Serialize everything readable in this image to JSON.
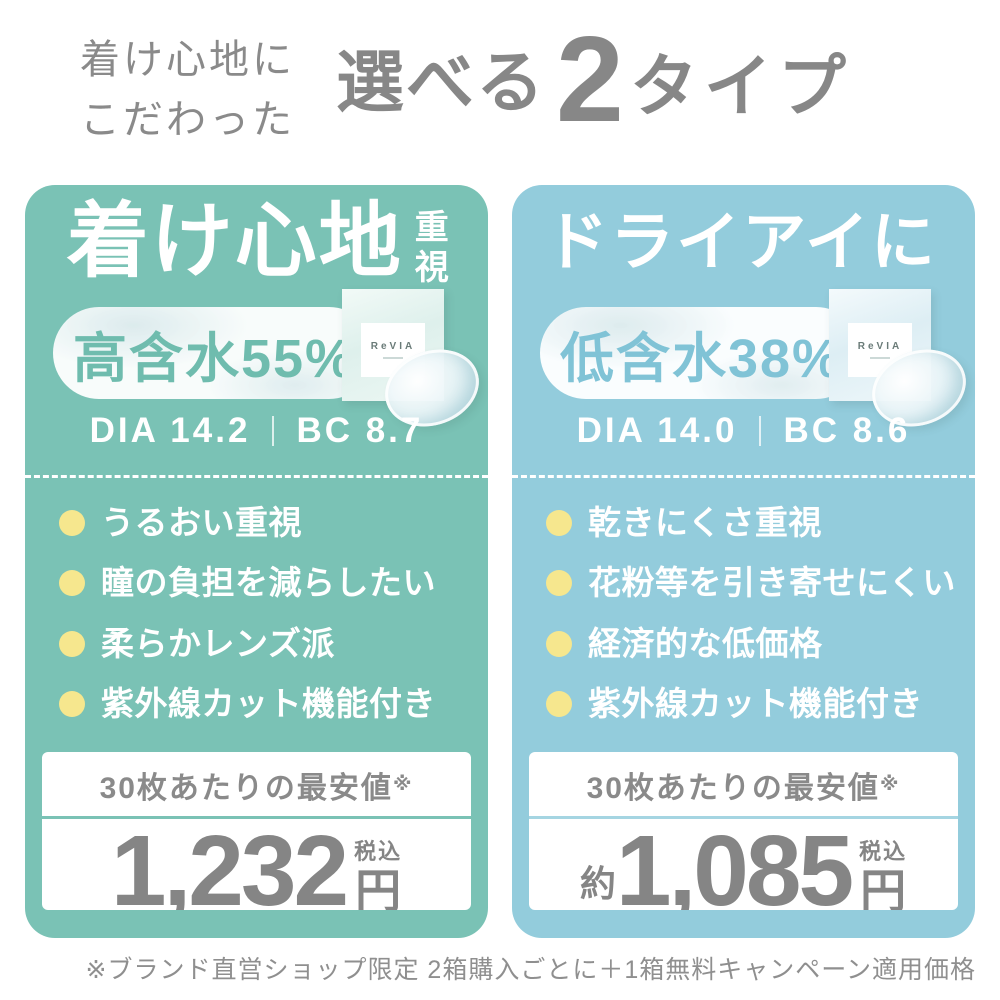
{
  "page": {
    "eyebrow_line1": "着け心地に",
    "eyebrow_line2": "こだわった",
    "title_pre": "選べる",
    "title_number": "2",
    "title_post": "タイプ",
    "footnote": "※ブランド直営ショップ限定 2箱購入ごとに＋1箱無料キャンペーン適用価格"
  },
  "colors": {
    "left_card_bg": "#7ac2b5",
    "right_card_bg": "#93ccdc",
    "bullet_dot_yellow": "#f6e78e",
    "heading_gray": "#8a8a8a",
    "price_gray": "#858585",
    "left_badge_text": "#6fbcae",
    "right_badge_text": "#80c3d6",
    "text_white": "#ffffff"
  },
  "cards": [
    {
      "title": "着け心地",
      "title_side": "重視",
      "badge": "高含水55%",
      "product_logo": "ReVIA",
      "spec_dia": "DIA 14.2",
      "spec_bc": "BC 8.7",
      "bullets": [
        "うるおい重視",
        "瞳の負担を減らしたい",
        "柔らかレンズ派",
        "紫外線カット機能付き"
      ],
      "price_label": "30枚あたりの最安値",
      "price_note": "※",
      "price_prefix": "",
      "price_amount": "1,232",
      "price_tax": "税込",
      "price_unit": "円"
    },
    {
      "title": "ドライアイに",
      "title_side": "",
      "badge": "低含水38%",
      "product_logo": "ReVIA",
      "spec_dia": "DIA 14.0",
      "spec_bc": "BC 8.6",
      "bullets": [
        "乾きにくさ重視",
        "花粉等を引き寄せにくい",
        "経済的な低価格",
        "紫外線カット機能付き"
      ],
      "price_label": "30枚あたりの最安値",
      "price_note": "※",
      "price_prefix": "約",
      "price_amount": "1,085",
      "price_tax": "税込",
      "price_unit": "円"
    }
  ]
}
